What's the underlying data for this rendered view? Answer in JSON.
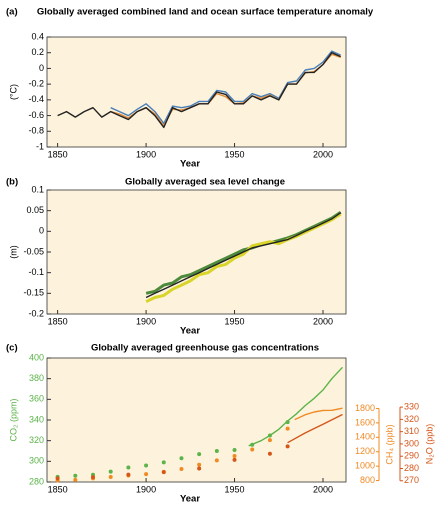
{
  "chart_data": [
    {
      "type": "line",
      "panel_label": "(a)",
      "title": "Globally averaged combined land and ocean surface temperature anomaly",
      "xlabel": "Year",
      "ylabel": "(°C)",
      "xlim": [
        1844,
        2013
      ],
      "xticks": [
        1850,
        1900,
        1950,
        2000
      ],
      "ylim": [
        -1,
        0.4
      ],
      "yticks": [
        0.4,
        0.2,
        0,
        -0.2,
        -0.4,
        -0.6,
        -0.8,
        -1
      ],
      "series": [
        {
          "color": "#4a7fb8",
          "x": [
            1880,
            1885,
            1890,
            1895,
            1900,
            1905,
            1910,
            1915,
            1920,
            1925,
            1930,
            1935,
            1940,
            1945,
            1950,
            1955,
            1960,
            1965,
            1970,
            1975,
            1980,
            1985,
            1990,
            1995,
            2000,
            2005,
            2010
          ],
          "values": [
            -0.5,
            -0.55,
            -0.6,
            -0.52,
            -0.45,
            -0.55,
            -0.7,
            -0.48,
            -0.5,
            -0.48,
            -0.42,
            -0.42,
            -0.28,
            -0.3,
            -0.42,
            -0.42,
            -0.32,
            -0.36,
            -0.32,
            -0.38,
            -0.18,
            -0.16,
            -0.02,
            0.0,
            0.08,
            0.22,
            0.17
          ]
        },
        {
          "color": "#e08a3a",
          "x": [
            1880,
            1885,
            1890,
            1895,
            1900,
            1905,
            1910,
            1915,
            1920,
            1925,
            1930,
            1935,
            1940,
            1945,
            1950,
            1955,
            1960,
            1965,
            1970,
            1975,
            1980,
            1985,
            1990,
            1995,
            2000,
            2005,
            2010
          ],
          "values": [
            -0.55,
            -0.58,
            -0.63,
            -0.55,
            -0.5,
            -0.58,
            -0.73,
            -0.52,
            -0.53,
            -0.5,
            -0.45,
            -0.45,
            -0.32,
            -0.36,
            -0.45,
            -0.44,
            -0.35,
            -0.38,
            -0.34,
            -0.4,
            -0.2,
            -0.2,
            -0.06,
            -0.04,
            0.05,
            0.18,
            0.14
          ]
        },
        {
          "color": "#222222",
          "x": [
            1850,
            1855,
            1860,
            1865,
            1870,
            1875,
            1880,
            1885,
            1890,
            1895,
            1900,
            1905,
            1910,
            1915,
            1920,
            1925,
            1930,
            1935,
            1940,
            1945,
            1950,
            1955,
            1960,
            1965,
            1970,
            1975,
            1980,
            1985,
            1990,
            1995,
            2000,
            2005,
            2010
          ],
          "values": [
            -0.6,
            -0.55,
            -0.62,
            -0.55,
            -0.5,
            -0.62,
            -0.55,
            -0.6,
            -0.65,
            -0.55,
            -0.5,
            -0.6,
            -0.75,
            -0.5,
            -0.55,
            -0.5,
            -0.45,
            -0.45,
            -0.3,
            -0.33,
            -0.45,
            -0.45,
            -0.35,
            -0.4,
            -0.35,
            -0.4,
            -0.2,
            -0.2,
            -0.05,
            -0.05,
            0.05,
            0.2,
            0.15
          ]
        }
      ]
    },
    {
      "type": "line",
      "panel_label": "(b)",
      "title": "Globally averaged sea level change",
      "xlabel": "Year",
      "ylabel": "(m)",
      "xlim": [
        1844,
        2013
      ],
      "xticks": [
        1850,
        1900,
        1950,
        2000
      ],
      "ylim": [
        -0.2,
        0.1
      ],
      "yticks": [
        0.1,
        0.05,
        0,
        -0.05,
        -0.1,
        -0.15,
        -0.2
      ],
      "series": [
        {
          "color": "#4e8a3c",
          "x": [
            1900,
            1905,
            1910,
            1915,
            1920,
            1925,
            1930,
            1935,
            1940,
            1945,
            1950,
            1955,
            1960,
            1965,
            1970,
            1975,
            1980,
            1985,
            1990,
            1995,
            2000,
            2005,
            2010
          ],
          "values": [
            -0.15,
            -0.145,
            -0.13,
            -0.125,
            -0.11,
            -0.105,
            -0.095,
            -0.085,
            -0.075,
            -0.065,
            -0.055,
            -0.045,
            -0.04,
            -0.032,
            -0.028,
            -0.022,
            -0.016,
            -0.008,
            0.002,
            0.012,
            0.022,
            0.032,
            0.046
          ]
        },
        {
          "color": "#d9d42a",
          "x": [
            1900,
            1905,
            1910,
            1915,
            1920,
            1925,
            1930,
            1935,
            1940,
            1945,
            1950,
            1955,
            1960,
            1965,
            1970,
            1975,
            1980,
            1985,
            1990,
            1995,
            2000,
            2005,
            2010
          ],
          "values": [
            -0.17,
            -0.16,
            -0.155,
            -0.14,
            -0.13,
            -0.12,
            -0.105,
            -0.1,
            -0.085,
            -0.08,
            -0.065,
            -0.055,
            -0.035,
            -0.03,
            -0.025,
            -0.03,
            -0.02,
            -0.012,
            -0.002,
            0.008,
            0.018,
            0.028,
            0.042
          ]
        },
        {
          "color": "#222222",
          "x": [
            1900,
            1905,
            1910,
            1915,
            1920,
            1925,
            1930,
            1935,
            1940,
            1945,
            1950,
            1955,
            1960,
            1965,
            1970,
            1975,
            1980,
            1985,
            1990,
            1995,
            2000,
            2005,
            2010
          ],
          "values": [
            -0.16,
            -0.15,
            -0.14,
            -0.13,
            -0.12,
            -0.11,
            -0.1,
            -0.09,
            -0.08,
            -0.07,
            -0.06,
            -0.05,
            -0.04,
            -0.035,
            -0.03,
            -0.025,
            -0.02,
            -0.01,
            0,
            0.01,
            0.02,
            0.03,
            0.045
          ]
        }
      ]
    },
    {
      "type": "line",
      "panel_label": "(c)",
      "title": "Globally averaged greenhouse gas concentrations",
      "xlabel": "Year",
      "xlim": [
        1844,
        2013
      ],
      "xticks": [
        1850,
        1900,
        1950,
        2000
      ],
      "ylabel": "CO₂ (ppm)",
      "ycolor": "#5bb349",
      "ylim": [
        280,
        400
      ],
      "yticks": [
        280,
        300,
        320,
        340,
        360,
        380,
        400
      ],
      "y2label": "CH₄ (ppb)",
      "y2color": "#f08a24",
      "y2lim": [
        780,
        2500
      ],
      "y2ticks": [
        800,
        1000,
        1200,
        1400,
        1600,
        1800
      ],
      "y3label": "N₂O (ppb)",
      "y3color": "#d4561a",
      "y3lim": [
        269,
        370
      ],
      "y3ticks": [
        270,
        280,
        290,
        300,
        310,
        320,
        330
      ],
      "series": [
        {
          "color": "#5bb349",
          "mode": "markers",
          "x": [
            1850,
            1860,
            1870,
            1880,
            1890,
            1900,
            1910,
            1920,
            1930,
            1940,
            1950,
            1960,
            1970,
            1980
          ],
          "values": [
            285,
            286,
            287,
            290,
            294,
            296,
            299,
            303,
            307,
            310,
            311,
            316,
            325,
            338
          ]
        },
        {
          "color": "#5bb349",
          "x": [
            1958,
            1965,
            1970,
            1975,
            1980,
            1985,
            1990,
            1995,
            2000,
            2005,
            2011
          ],
          "values": [
            315,
            320,
            325,
            331,
            339,
            346,
            354,
            361,
            369,
            380,
            391
          ]
        },
        {
          "color": "#f08a24",
          "axis": "y2",
          "mode": "markers",
          "x": [
            1850,
            1860,
            1870,
            1880,
            1890,
            1900,
            1910,
            1920,
            1930,
            1940,
            1950,
            1960,
            1970,
            1980
          ],
          "values": [
            800,
            810,
            830,
            850,
            870,
            890,
            920,
            960,
            1020,
            1080,
            1140,
            1230,
            1360,
            1520
          ]
        },
        {
          "color": "#f08a24",
          "axis": "y2",
          "x": [
            1984,
            1990,
            1995,
            2000,
            2005,
            2011
          ],
          "values": [
            1645,
            1714,
            1751,
            1773,
            1774,
            1803
          ]
        },
        {
          "color": "#d4561a",
          "axis": "y3",
          "mode": "markers",
          "x": [
            1850,
            1870,
            1890,
            1910,
            1930,
            1950,
            1970,
            1980
          ],
          "values": [
            272,
            273,
            275,
            277,
            280,
            287,
            292,
            298
          ]
        },
        {
          "color": "#d4561a",
          "axis": "y3",
          "x": [
            1980,
            1990,
            2000,
            2011
          ],
          "values": [
            301,
            309,
            316,
            324
          ]
        }
      ]
    }
  ]
}
